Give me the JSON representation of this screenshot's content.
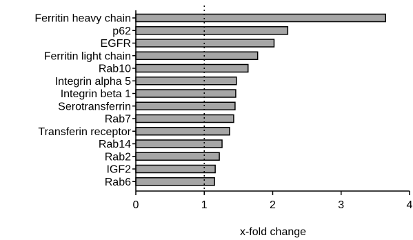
{
  "chart_data": {
    "type": "bar",
    "orientation": "horizontal",
    "categories": [
      "Ferritin heavy chain",
      "p62",
      "EGFR",
      "Ferritin light chain",
      "Rab10",
      "Integrin alpha 5",
      "Integrin beta 1",
      "Serotransferrin",
      "Rab7",
      "Transferin receptor",
      "Rab14",
      "Rab2",
      "IGF2",
      "Rab6"
    ],
    "values": [
      3.65,
      2.22,
      2.02,
      1.78,
      1.64,
      1.47,
      1.46,
      1.45,
      1.43,
      1.37,
      1.26,
      1.22,
      1.16,
      1.15
    ],
    "xlabel": "x-fold change",
    "ylabel": "",
    "xlim": [
      0,
      4
    ],
    "xticks": [
      "0",
      "1",
      "2",
      "3",
      "4"
    ],
    "reference_line": 1,
    "grid": false,
    "colors": {
      "bar_fill": "#a6a6a6",
      "bar_stroke": "#000000",
      "axis": "#000000"
    }
  }
}
